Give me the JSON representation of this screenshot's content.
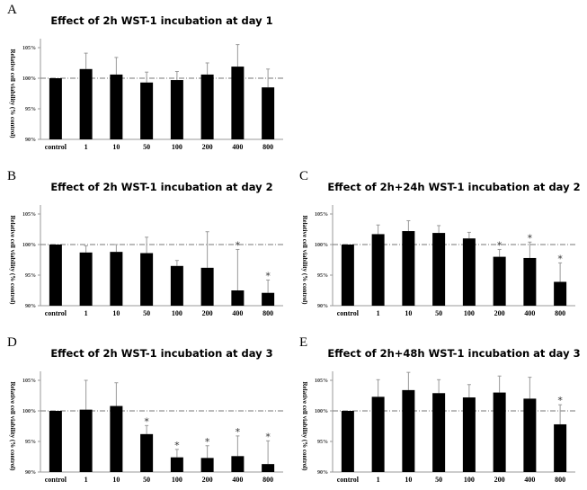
{
  "chart_data": [
    {
      "panel": "A",
      "type": "bar",
      "title": "Effect of 2h WST-1 incubation at day 1",
      "ylabel": "Relative cell viability (% control)",
      "ylim": [
        90,
        105
      ],
      "yticks": [
        "90%",
        "95%",
        "100%",
        "105%"
      ],
      "reference_line": 100,
      "categories": [
        "control",
        "1",
        "10",
        "50",
        "100",
        "200",
        "400",
        "800"
      ],
      "values": [
        100,
        101.5,
        100.6,
        99.3,
        99.7,
        100.6,
        101.9,
        98.5
      ],
      "error_upper": [
        100,
        104.1,
        103.4,
        101.0,
        101.1,
        102.5,
        105.5,
        101.5
      ],
      "significant": [
        false,
        false,
        false,
        false,
        false,
        false,
        false,
        false
      ],
      "significance_marker": "*"
    },
    {
      "panel": "B",
      "type": "bar",
      "title": "Effect of 2h WST-1 incubation at day 2",
      "ylabel": "Relative cell viability (% control)",
      "ylim": [
        90,
        105
      ],
      "yticks": [
        "90%",
        "95%",
        "100%",
        "105%"
      ],
      "reference_line": 100,
      "categories": [
        "control",
        "1",
        "10",
        "50",
        "100",
        "200",
        "400",
        "800"
      ],
      "values": [
        100,
        98.7,
        98.8,
        98.6,
        96.5,
        96.2,
        92.5,
        92.1
      ],
      "error_upper": [
        100,
        99.8,
        100.0,
        101.2,
        97.4,
        102.1,
        99.2,
        94.2
      ],
      "significant": [
        false,
        false,
        false,
        false,
        false,
        false,
        true,
        true
      ],
      "significance_marker": "*"
    },
    {
      "panel": "C",
      "type": "bar",
      "title": "Effect of 2h+24h WST-1 incubation at day 2",
      "ylabel": "Relative cell viability (% control)",
      "ylim": [
        90,
        105
      ],
      "yticks": [
        "90%",
        "95%",
        "100%",
        "105%"
      ],
      "reference_line": 100,
      "categories": [
        "control",
        "1",
        "10",
        "50",
        "100",
        "200",
        "400",
        "800"
      ],
      "values": [
        100,
        101.7,
        102.2,
        101.9,
        101.0,
        98.0,
        97.8,
        93.9
      ],
      "error_upper": [
        100,
        103.2,
        103.9,
        103.1,
        102.0,
        99.2,
        100.4,
        97.0
      ],
      "significant": [
        false,
        false,
        false,
        false,
        false,
        true,
        true,
        true
      ],
      "significance_marker": "*"
    },
    {
      "panel": "D",
      "type": "bar",
      "title": "Effect of 2h WST-1 incubation at day 3",
      "ylabel": "Relative cell viability (% control)",
      "ylim": [
        90,
        105
      ],
      "yticks": [
        "90%",
        "95%",
        "100%",
        "105%"
      ],
      "reference_line": 100,
      "categories": [
        "control",
        "1",
        "10",
        "50",
        "100",
        "200",
        "400",
        "800"
      ],
      "values": [
        100,
        100.2,
        100.8,
        96.2,
        92.4,
        92.3,
        92.6,
        91.3
      ],
      "error_upper": [
        100,
        105.0,
        104.6,
        97.6,
        93.7,
        94.3,
        95.9,
        95.1
      ],
      "significant": [
        false,
        false,
        false,
        true,
        true,
        true,
        true,
        true
      ],
      "significance_marker": "*"
    },
    {
      "panel": "E",
      "type": "bar",
      "title": "Effect of 2h+48h WST-1 incubation at day 3",
      "ylabel": "Relative cell viability (% control)",
      "ylim": [
        90,
        105
      ],
      "yticks": [
        "90%",
        "95%",
        "100%",
        "105%"
      ],
      "reference_line": 100,
      "categories": [
        "control",
        "1",
        "10",
        "50",
        "100",
        "200",
        "400",
        "800"
      ],
      "values": [
        100,
        102.3,
        103.4,
        102.9,
        102.2,
        103.0,
        102.0,
        97.8
      ],
      "error_upper": [
        100,
        105.1,
        106.3,
        105.1,
        104.3,
        105.7,
        105.5,
        101.0
      ],
      "significant": [
        false,
        false,
        false,
        false,
        false,
        false,
        false,
        true
      ],
      "significance_marker": "*"
    }
  ],
  "colors": {
    "bar": "#000000",
    "error_bar": "#999999",
    "reference_line": "#777777",
    "axis": "#999999"
  }
}
